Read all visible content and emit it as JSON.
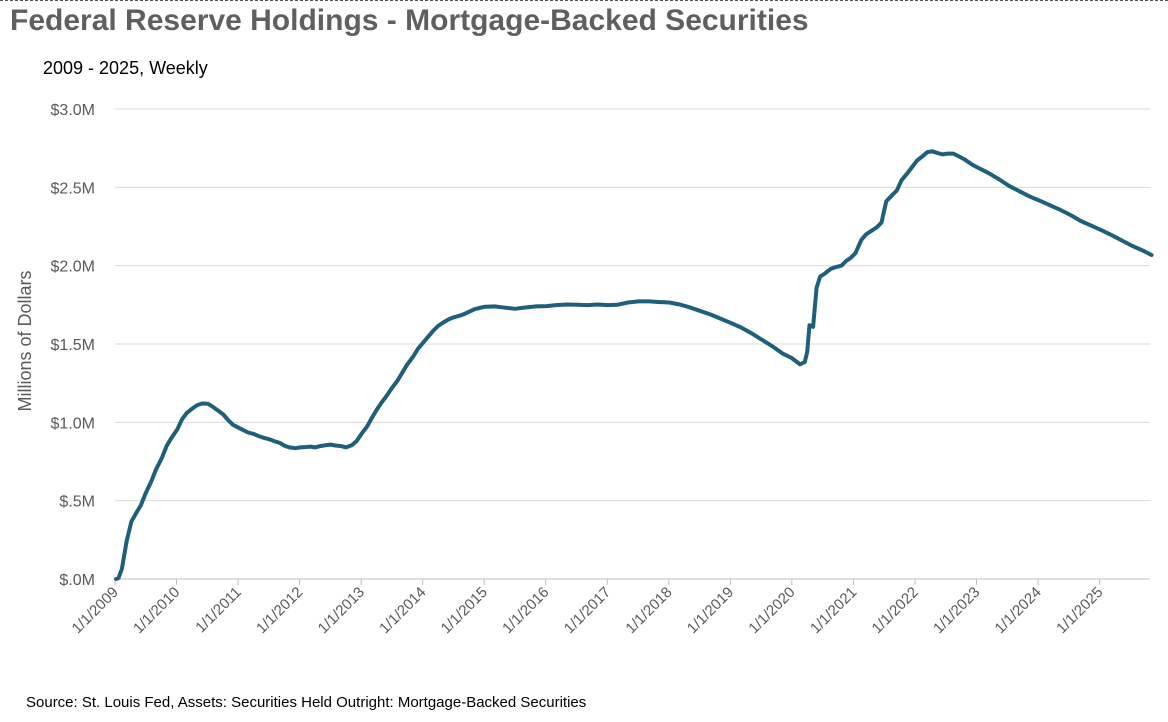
{
  "title": "Federal Reserve Holdings - Mortgage-Backed Securities",
  "subtitle": "2009 - 2025, Weekly",
  "source": "Source: St. Louis Fed, Assets: Securities Held Outright: Mortgage-Backed Securities",
  "chart_data": {
    "type": "line",
    "title": "Federal Reserve Holdings - Mortgage-Backed Securities",
    "subtitle": "2009 - 2025, Weekly",
    "ylabel": "Millions of Dollars",
    "xlabel": "",
    "ylim": [
      0,
      3000000
    ],
    "xlim": [
      "2009-01-01",
      "2025-11-05"
    ],
    "grid": "horizontal",
    "line_color": "#1f5f7a",
    "y_ticks": [
      {
        "value": 0,
        "label": "$.0M"
      },
      {
        "value": 500000,
        "label": "$.5M"
      },
      {
        "value": 1000000,
        "label": "$1.0M"
      },
      {
        "value": 1500000,
        "label": "$1.5M"
      },
      {
        "value": 2000000,
        "label": "$2.0M"
      },
      {
        "value": 2500000,
        "label": "$2.5M"
      },
      {
        "value": 3000000,
        "label": "$3.0M"
      }
    ],
    "x_ticks": [
      {
        "value": "2009-01-01",
        "label": "1/1/2009"
      },
      {
        "value": "2010-01-01",
        "label": "1/1/2010"
      },
      {
        "value": "2011-01-01",
        "label": "1/1/2011"
      },
      {
        "value": "2012-01-01",
        "label": "1/1/2012"
      },
      {
        "value": "2013-01-01",
        "label": "1/1/2013"
      },
      {
        "value": "2014-01-01",
        "label": "1/1/2014"
      },
      {
        "value": "2015-01-01",
        "label": "1/1/2015"
      },
      {
        "value": "2016-01-01",
        "label": "1/1/2016"
      },
      {
        "value": "2017-01-01",
        "label": "1/1/2017"
      },
      {
        "value": "2018-01-01",
        "label": "1/1/2018"
      },
      {
        "value": "2019-01-01",
        "label": "1/1/2019"
      },
      {
        "value": "2020-01-01",
        "label": "1/1/2020"
      },
      {
        "value": "2021-01-01",
        "label": "1/1/2021"
      },
      {
        "value": "2022-01-01",
        "label": "1/1/2022"
      },
      {
        "value": "2023-01-01",
        "label": "1/1/2023"
      },
      {
        "value": "2024-01-01",
        "label": "1/1/2024"
      },
      {
        "value": "2025-01-01",
        "label": "1/1/2025"
      }
    ],
    "series": [
      {
        "points": [
          [
            "2009-01-07",
            0
          ],
          [
            "2009-01-21",
            5000
          ],
          [
            "2009-02-11",
            65000
          ],
          [
            "2009-03-11",
            240000
          ],
          [
            "2009-04-08",
            365000
          ],
          [
            "2009-05-06",
            420000
          ],
          [
            "2009-06-03",
            470000
          ],
          [
            "2009-07-01",
            545000
          ],
          [
            "2009-08-05",
            625000
          ],
          [
            "2009-09-02",
            700000
          ],
          [
            "2009-10-07",
            775000
          ],
          [
            "2009-11-04",
            850000
          ],
          [
            "2009-12-02",
            900000
          ],
          [
            "2010-01-06",
            955000
          ],
          [
            "2010-02-03",
            1020000
          ],
          [
            "2010-03-03",
            1060000
          ],
          [
            "2010-04-07",
            1090000
          ],
          [
            "2010-05-05",
            1110000
          ],
          [
            "2010-06-02",
            1120000
          ],
          [
            "2010-07-07",
            1118000
          ],
          [
            "2010-08-04",
            1100000
          ],
          [
            "2010-09-01",
            1078000
          ],
          [
            "2010-10-06",
            1050000
          ],
          [
            "2010-11-03",
            1015000
          ],
          [
            "2010-12-01",
            985000
          ],
          [
            "2011-01-05",
            965000
          ],
          [
            "2011-02-02",
            950000
          ],
          [
            "2011-03-02",
            935000
          ],
          [
            "2011-04-06",
            925000
          ],
          [
            "2011-05-04",
            912000
          ],
          [
            "2011-06-01",
            902000
          ],
          [
            "2011-07-06",
            892000
          ],
          [
            "2011-08-03",
            880000
          ],
          [
            "2011-09-07",
            868000
          ],
          [
            "2011-10-05",
            850000
          ],
          [
            "2011-11-02",
            840000
          ],
          [
            "2011-12-07",
            835000
          ],
          [
            "2012-01-04",
            840000
          ],
          [
            "2012-02-01",
            842000
          ],
          [
            "2012-03-07",
            845000
          ],
          [
            "2012-04-04",
            840000
          ],
          [
            "2012-05-02",
            848000
          ],
          [
            "2012-06-06",
            855000
          ],
          [
            "2012-07-04",
            858000
          ],
          [
            "2012-08-01",
            852000
          ],
          [
            "2012-09-05",
            848000
          ],
          [
            "2012-10-03",
            840000
          ],
          [
            "2012-11-07",
            855000
          ],
          [
            "2012-12-05",
            880000
          ],
          [
            "2013-01-02",
            925000
          ],
          [
            "2013-02-06",
            975000
          ],
          [
            "2013-03-06",
            1030000
          ],
          [
            "2013-04-03",
            1080000
          ],
          [
            "2013-05-01",
            1125000
          ],
          [
            "2013-06-05",
            1175000
          ],
          [
            "2013-07-03",
            1220000
          ],
          [
            "2013-08-07",
            1270000
          ],
          [
            "2013-09-04",
            1320000
          ],
          [
            "2013-10-02",
            1370000
          ],
          [
            "2013-11-06",
            1420000
          ],
          [
            "2013-12-04",
            1470000
          ],
          [
            "2014-01-01",
            1505000
          ],
          [
            "2014-02-05",
            1550000
          ],
          [
            "2014-03-05",
            1585000
          ],
          [
            "2014-04-02",
            1615000
          ],
          [
            "2014-05-07",
            1640000
          ],
          [
            "2014-06-04",
            1657000
          ],
          [
            "2014-07-02",
            1670000
          ],
          [
            "2014-08-06",
            1680000
          ],
          [
            "2014-09-03",
            1690000
          ],
          [
            "2014-10-01",
            1705000
          ],
          [
            "2014-11-05",
            1722000
          ],
          [
            "2014-12-03",
            1730000
          ],
          [
            "2015-01-07",
            1738000
          ],
          [
            "2015-03-04",
            1740000
          ],
          [
            "2015-05-06",
            1732000
          ],
          [
            "2015-07-01",
            1725000
          ],
          [
            "2015-09-02",
            1733000
          ],
          [
            "2015-11-04",
            1740000
          ],
          [
            "2016-01-06",
            1742000
          ],
          [
            "2016-03-02",
            1748000
          ],
          [
            "2016-05-04",
            1752000
          ],
          [
            "2016-07-06",
            1750000
          ],
          [
            "2016-09-07",
            1748000
          ],
          [
            "2016-11-02",
            1752000
          ],
          [
            "2017-01-04",
            1748000
          ],
          [
            "2017-03-01",
            1750000
          ],
          [
            "2017-05-03",
            1765000
          ],
          [
            "2017-07-05",
            1772000
          ],
          [
            "2017-09-06",
            1772000
          ],
          [
            "2017-11-01",
            1768000
          ],
          [
            "2018-01-03",
            1765000
          ],
          [
            "2018-03-07",
            1752000
          ],
          [
            "2018-05-02",
            1735000
          ],
          [
            "2018-07-04",
            1712000
          ],
          [
            "2018-09-05",
            1688000
          ],
          [
            "2018-11-07",
            1660000
          ],
          [
            "2019-01-02",
            1635000
          ],
          [
            "2019-03-06",
            1605000
          ],
          [
            "2019-05-01",
            1572000
          ],
          [
            "2019-07-03",
            1530000
          ],
          [
            "2019-09-04",
            1488000
          ],
          [
            "2019-11-06",
            1440000
          ],
          [
            "2020-01-01",
            1410000
          ],
          [
            "2020-02-19",
            1370000
          ],
          [
            "2020-03-18",
            1385000
          ],
          [
            "2020-04-01",
            1450000
          ],
          [
            "2020-04-15",
            1620000
          ],
          [
            "2020-05-06",
            1610000
          ],
          [
            "2020-05-27",
            1860000
          ],
          [
            "2020-06-17",
            1930000
          ],
          [
            "2020-07-15",
            1950000
          ],
          [
            "2020-08-19",
            1980000
          ],
          [
            "2020-09-16",
            1990000
          ],
          [
            "2020-10-21",
            2000000
          ],
          [
            "2020-11-18",
            2030000
          ],
          [
            "2020-12-16",
            2050000
          ],
          [
            "2021-01-13",
            2080000
          ],
          [
            "2021-02-17",
            2165000
          ],
          [
            "2021-03-17",
            2200000
          ],
          [
            "2021-04-14",
            2220000
          ],
          [
            "2021-05-19",
            2245000
          ],
          [
            "2021-06-16",
            2275000
          ],
          [
            "2021-07-14",
            2410000
          ],
          [
            "2021-08-18",
            2450000
          ],
          [
            "2021-09-15",
            2480000
          ],
          [
            "2021-10-13",
            2545000
          ],
          [
            "2021-11-17",
            2590000
          ],
          [
            "2021-12-15",
            2630000
          ],
          [
            "2022-01-12",
            2670000
          ],
          [
            "2022-02-16",
            2700000
          ],
          [
            "2022-03-16",
            2725000
          ],
          [
            "2022-04-13",
            2730000
          ],
          [
            "2022-05-18",
            2718000
          ],
          [
            "2022-06-15",
            2710000
          ],
          [
            "2022-07-13",
            2715000
          ],
          [
            "2022-08-17",
            2715000
          ],
          [
            "2022-09-14",
            2700000
          ],
          [
            "2022-10-19",
            2680000
          ],
          [
            "2022-11-16",
            2660000
          ],
          [
            "2022-12-14",
            2640000
          ],
          [
            "2023-01-11",
            2625000
          ],
          [
            "2023-03-15",
            2590000
          ],
          [
            "2023-05-17",
            2550000
          ],
          [
            "2023-07-12",
            2510000
          ],
          [
            "2023-09-13",
            2475000
          ],
          [
            "2023-11-15",
            2440000
          ],
          [
            "2024-01-10",
            2415000
          ],
          [
            "2024-03-13",
            2385000
          ],
          [
            "2024-05-15",
            2355000
          ],
          [
            "2024-07-17",
            2320000
          ],
          [
            "2024-09-11",
            2285000
          ],
          [
            "2024-11-13",
            2255000
          ],
          [
            "2025-01-15",
            2225000
          ],
          [
            "2025-03-12",
            2195000
          ],
          [
            "2025-05-14",
            2160000
          ],
          [
            "2025-07-16",
            2125000
          ],
          [
            "2025-09-17",
            2095000
          ],
          [
            "2025-11-05",
            2068000
          ]
        ]
      }
    ]
  }
}
